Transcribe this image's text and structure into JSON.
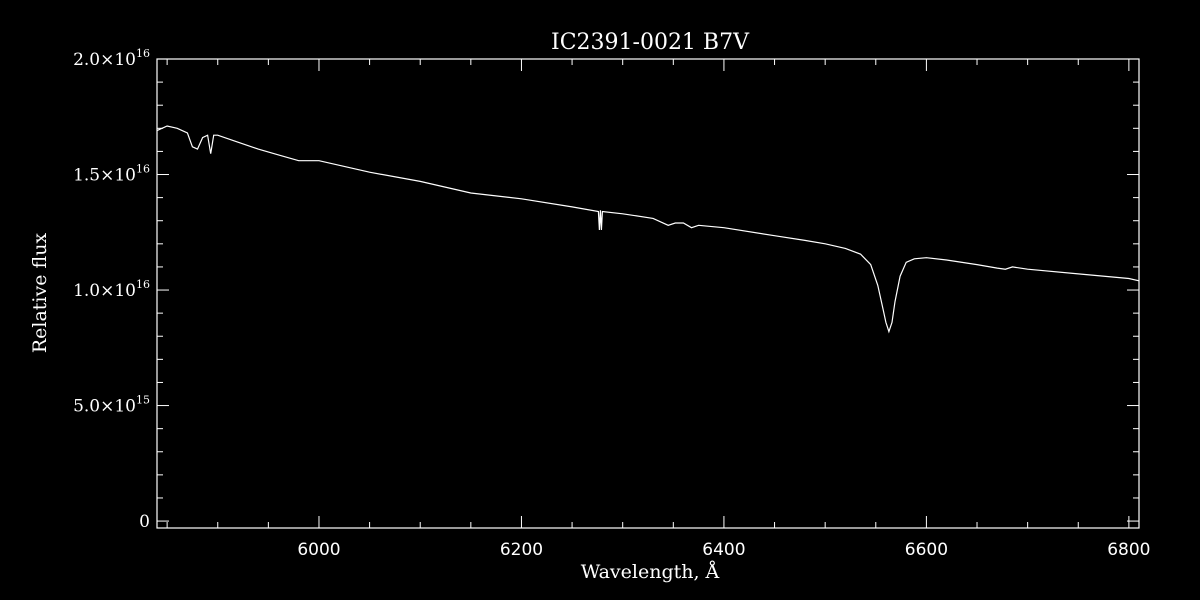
{
  "chart_data": {
    "type": "line",
    "title": "IC2391-0021   B7V",
    "xlabel": "Wavelength, Å",
    "ylabel": "Relative flux",
    "xlim": [
      5840,
      6810
    ],
    "ylim": [
      -300000000000000.0,
      2e+16
    ],
    "x_ticks": [
      {
        "value": 6000,
        "label": "6000"
      },
      {
        "value": 6200,
        "label": "6200"
      },
      {
        "value": 6400,
        "label": "6400"
      },
      {
        "value": 6600,
        "label": "6600"
      },
      {
        "value": 6800,
        "label": "6800"
      }
    ],
    "y_ticks": [
      {
        "value": 0,
        "mantissa": "0",
        "exponent": ""
      },
      {
        "value": 5000000000000000.0,
        "mantissa": "5.0×10",
        "exponent": "15"
      },
      {
        "value": 1e+16,
        "mantissa": "1.0×10",
        "exponent": "16"
      },
      {
        "value": 1.5e+16,
        "mantissa": "1.5×10",
        "exponent": "16"
      },
      {
        "value": 2e+16,
        "mantissa": "2.0×10",
        "exponent": "16"
      }
    ],
    "series": [
      {
        "color": "#ffffff",
        "x": [
          5840,
          5850,
          5860,
          5870,
          5875,
          5880,
          5885,
          5890,
          5893,
          5896,
          5900,
          5920,
          5940,
          5960,
          5980,
          6000,
          6050,
          6100,
          6150,
          6200,
          6250,
          6276,
          6277,
          6278,
          6279,
          6280,
          6300,
          6330,
          6345,
          6352,
          6360,
          6368,
          6375,
          6400,
          6450,
          6480,
          6500,
          6520,
          6535,
          6545,
          6552,
          6557,
          6560,
          6563,
          6566,
          6569,
          6574,
          6580,
          6588,
          6600,
          6620,
          6650,
          6670,
          6678,
          6685,
          6700,
          6750,
          6800,
          6810
        ],
        "y": [
          1.69e+16,
          1.71e+16,
          1.7e+16,
          1.68e+16,
          1.62e+16,
          1.61e+16,
          1.66e+16,
          1.67e+16,
          1.59e+16,
          1.67e+16,
          1.67e+16,
          1.64e+16,
          1.61e+16,
          1.585e+16,
          1.56e+16,
          1.56e+16,
          1.51e+16,
          1.47e+16,
          1.42e+16,
          1.395e+16,
          1.36e+16,
          1.34e+16,
          1.26e+16,
          1.345e+16,
          1.26e+16,
          1.34e+16,
          1.33e+16,
          1.31e+16,
          1.28e+16,
          1.29e+16,
          1.29e+16,
          1.27e+16,
          1.28e+16,
          1.27e+16,
          1.235e+16,
          1.215e+16,
          1.2e+16,
          1.18e+16,
          1.155e+16,
          1.11e+16,
          1.02e+16,
          9200000000000000.0,
          8600000000000000.0,
          8200000000000000.0,
          8600000000000000.0,
          9500000000000000.0,
          1.06e+16,
          1.12e+16,
          1.135e+16,
          1.14e+16,
          1.13e+16,
          1.11e+16,
          1.095e+16,
          1.09e+16,
          1.1e+16,
          1.09e+16,
          1.07e+16,
          1.05e+16,
          1.04e+16
        ]
      }
    ],
    "grid": false
  }
}
